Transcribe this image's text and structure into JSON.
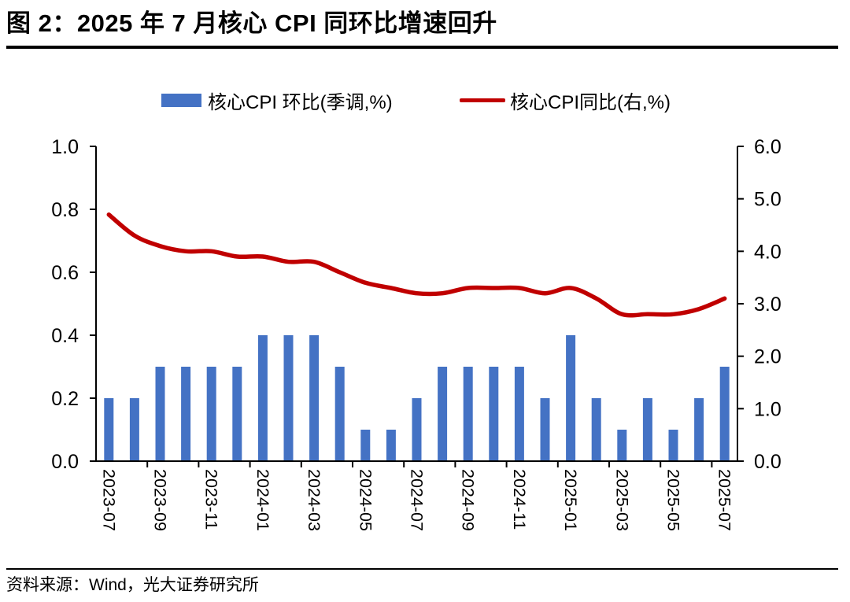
{
  "header": {
    "title": "图 2：2025 年 7 月核心 CPI 同环比增速回升"
  },
  "footer": {
    "source": "资料来源：Wind，光大证券研究所"
  },
  "colors": {
    "bar": "#4472C4",
    "line": "#C00000",
    "axis": "#000000",
    "text": "#000000",
    "background": "#FFFFFF"
  },
  "chart_data": {
    "type": "bar+line",
    "title": "图 2：2025 年 7 月核心 CPI 同环比增速回升",
    "grid": false,
    "legend_position": "top-center",
    "categories": [
      "2023-07",
      "2023-08",
      "2023-09",
      "2023-10",
      "2023-11",
      "2023-12",
      "2024-01",
      "2024-02",
      "2024-03",
      "2024-04",
      "2024-05",
      "2024-06",
      "2024-07",
      "2024-08",
      "2024-09",
      "2024-10",
      "2024-11",
      "2024-12",
      "2025-01",
      "2025-02",
      "2025-03",
      "2025-04",
      "2025-05",
      "2025-06",
      "2025-07"
    ],
    "x_tick_labels": [
      "2023-07",
      "2023-09",
      "2023-11",
      "2024-01",
      "2024-03",
      "2024-05",
      "2024-07",
      "2024-09",
      "2024-11",
      "2025-01",
      "2025-03",
      "2025-05",
      "2025-07"
    ],
    "series": [
      {
        "name": "核心CPI 环比(季调,%)",
        "type": "bar",
        "axis": "left",
        "color": "#4472C4",
        "values": [
          0.2,
          0.2,
          0.3,
          0.3,
          0.3,
          0.3,
          0.4,
          0.4,
          0.4,
          0.3,
          0.1,
          0.1,
          0.2,
          0.3,
          0.3,
          0.3,
          0.3,
          0.2,
          0.4,
          0.2,
          0.1,
          0.2,
          0.1,
          0.2,
          0.3
        ]
      },
      {
        "name": "核心CPI同比(右,%)",
        "type": "line",
        "axis": "right",
        "color": "#C00000",
        "values": [
          4.7,
          4.3,
          4.1,
          4.0,
          4.0,
          3.9,
          3.9,
          3.8,
          3.8,
          3.6,
          3.4,
          3.3,
          3.2,
          3.2,
          3.3,
          3.3,
          3.3,
          3.2,
          3.3,
          3.1,
          2.8,
          2.8,
          2.8,
          2.9,
          3.1
        ]
      }
    ],
    "left_axis": {
      "min": 0.0,
      "max": 1.0,
      "step": 0.2,
      "tick_labels": [
        "0.0",
        "0.2",
        "0.4",
        "0.6",
        "0.8",
        "1.0"
      ]
    },
    "right_axis": {
      "min": 0.0,
      "max": 6.0,
      "step": 1.0,
      "tick_labels": [
        "0.0",
        "1.0",
        "2.0",
        "3.0",
        "4.0",
        "5.0",
        "6.0"
      ]
    }
  }
}
